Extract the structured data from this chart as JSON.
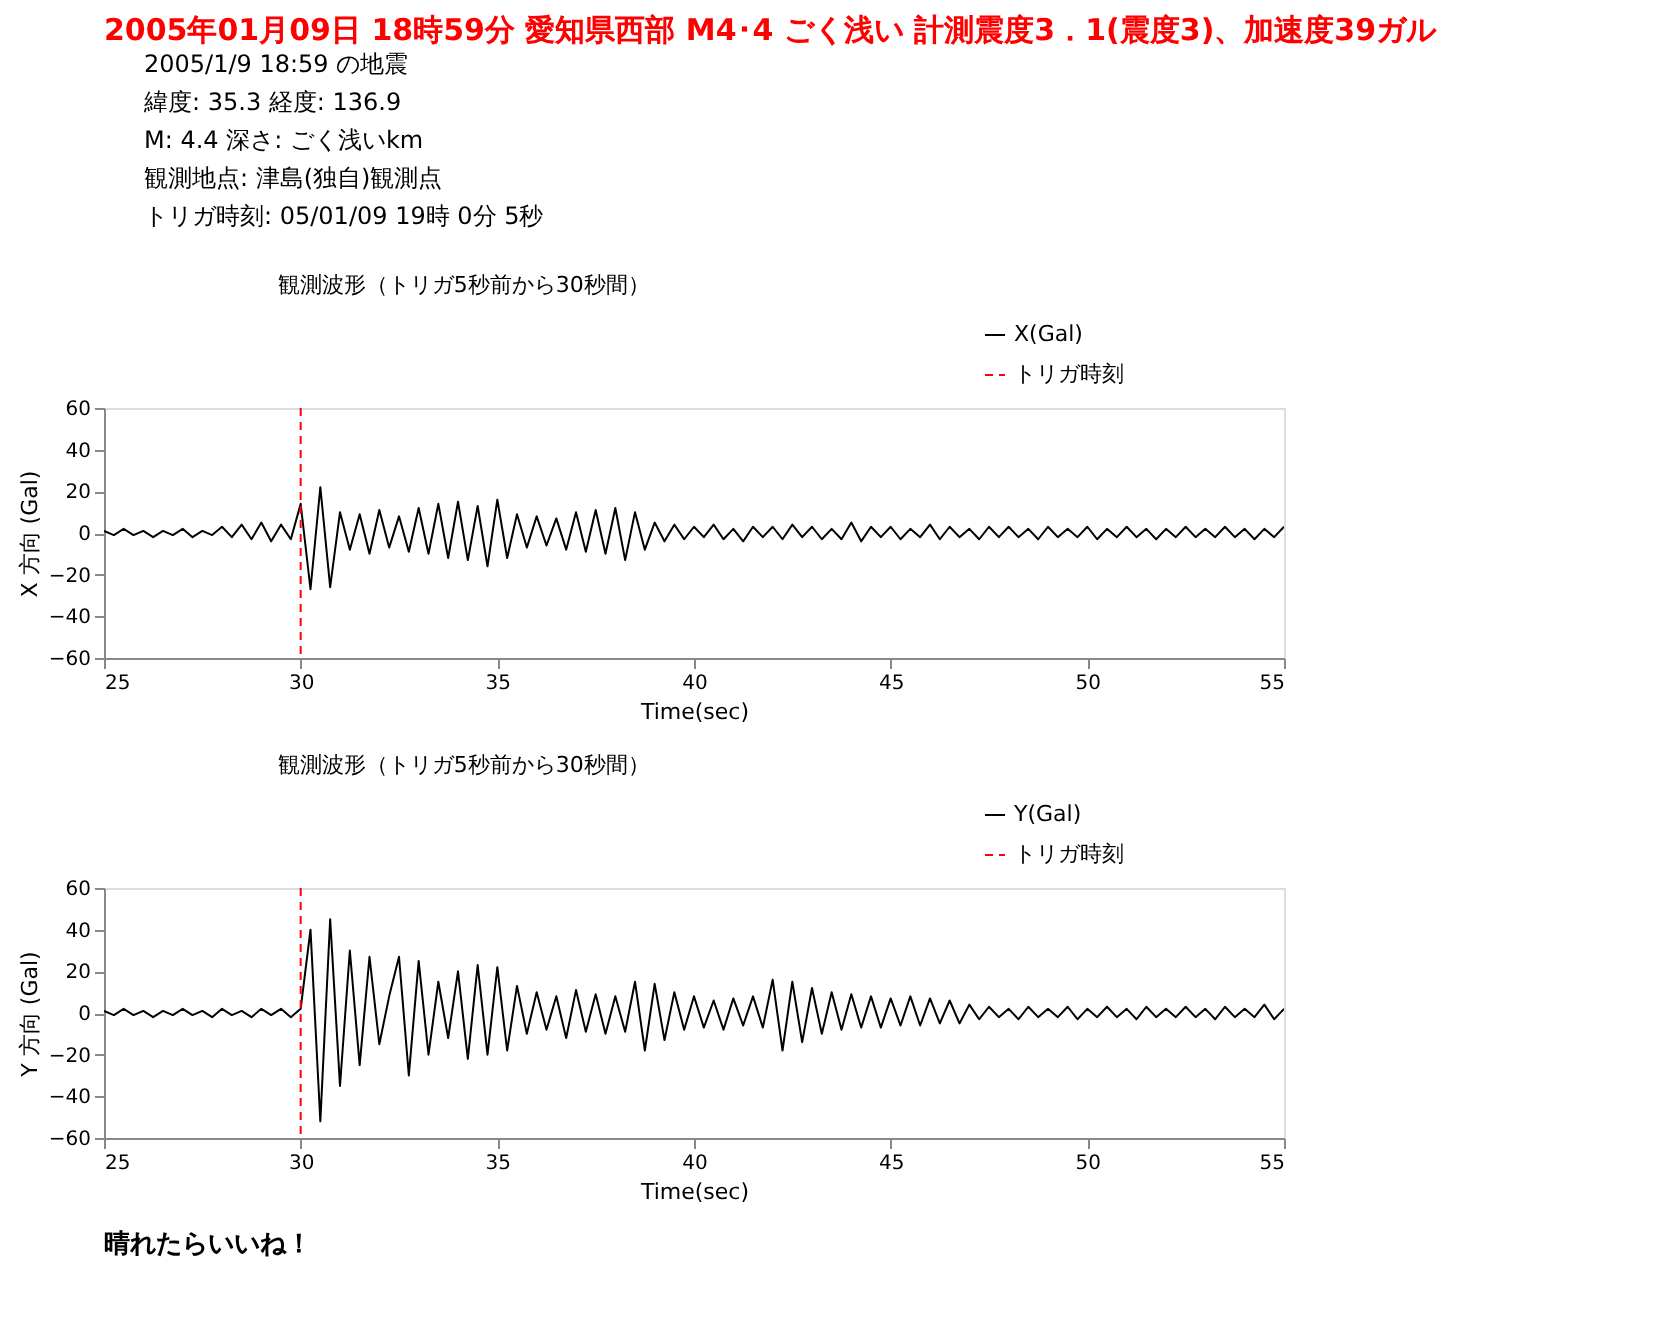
{
  "chart_data": [
    {
      "type": "line",
      "title": "観測波形（トリガ5秒前から30秒間）",
      "xlabel": "Time(sec)",
      "ylabel": "X 方向 (Gal)",
      "annotations": [
        "2005年01月09日 18時59分 愛知県西部 M4･4 ごく浅い 計測震度3．1(震度3)、加速度39ガル",
        "2005/1/9 18:59 の地震",
        "緯度: 35.3  経度: 136.9",
        "M: 4.4  深さ: ごく浅いkm",
        "観測地点: 津島(独自)観測点",
        "トリガ時刻: 05/01/09 19時 0分 5秒"
      ],
      "x": [
        25,
        25.25,
        25.5,
        25.75,
        26,
        26.25,
        26.5,
        26.75,
        27,
        27.25,
        27.5,
        27.75,
        28,
        28.25,
        28.5,
        28.75,
        29,
        29.25,
        29.5,
        29.75,
        30,
        30.25,
        30.5,
        30.75,
        31,
        31.25,
        31.5,
        31.75,
        32,
        32.25,
        32.5,
        32.75,
        33,
        33.25,
        33.5,
        33.75,
        34,
        34.25,
        34.5,
        34.75,
        35,
        35.25,
        35.5,
        35.75,
        36,
        36.25,
        36.5,
        36.75,
        37,
        37.25,
        37.5,
        37.75,
        38,
        38.25,
        38.5,
        38.75,
        39,
        39.25,
        39.5,
        39.75,
        40,
        40.25,
        40.5,
        40.75,
        41,
        41.25,
        41.5,
        41.75,
        42,
        42.25,
        42.5,
        42.75,
        43,
        43.25,
        43.5,
        43.75,
        44,
        44.25,
        44.5,
        44.75,
        45,
        45.25,
        45.5,
        45.75,
        46,
        46.25,
        46.5,
        46.75,
        47,
        47.25,
        47.5,
        47.75,
        48,
        48.25,
        48.5,
        48.75,
        49,
        49.25,
        49.5,
        49.75,
        50,
        50.25,
        50.5,
        50.75,
        51,
        51.25,
        51.5,
        51.75,
        52,
        52.25,
        52.5,
        52.75,
        53,
        53.25,
        53.5,
        53.75,
        54,
        54.25,
        54.5,
        54.75,
        55
      ],
      "series": [
        {
          "name": "X(Gal)",
          "color": "#000000",
          "line_style": "solid",
          "values": [
            1,
            -1,
            2,
            -1,
            1,
            -2,
            1,
            -1,
            2,
            -2,
            1,
            -1,
            3,
            -2,
            4,
            -3,
            5,
            -4,
            4,
            -3,
            14,
            -27,
            22,
            -26,
            10,
            -8,
            9,
            -10,
            11,
            -7,
            8,
            -9,
            12,
            -10,
            14,
            -12,
            15,
            -13,
            13,
            -16,
            16,
            -12,
            9,
            -7,
            8,
            -6,
            7,
            -8,
            10,
            -9,
            11,
            -10,
            12,
            -13,
            10,
            -8,
            5,
            -4,
            4,
            -3,
            3,
            -2,
            4,
            -3,
            2,
            -4,
            3,
            -2,
            3,
            -3,
            4,
            -2,
            3,
            -3,
            2,
            -3,
            5,
            -4,
            3,
            -2,
            3,
            -3,
            2,
            -2,
            4,
            -3,
            3,
            -2,
            2,
            -3,
            3,
            -2,
            3,
            -2,
            2,
            -3,
            3,
            -2,
            2,
            -2,
            3,
            -3,
            2,
            -2,
            3,
            -2,
            2,
            -3,
            2,
            -2,
            3,
            -2,
            2,
            -2,
            3,
            -2,
            2,
            -3,
            2,
            -2,
            3
          ]
        }
      ],
      "ref_lines": [
        {
          "axis": "x",
          "value": 30,
          "label": "トリガ時刻",
          "color": "#ff0000",
          "line_style": "dashed"
        }
      ],
      "xlim": [
        25,
        55
      ],
      "xticks": [
        25,
        30,
        35,
        40,
        45,
        50,
        55
      ],
      "ylim": [
        -60,
        60
      ],
      "yticks": [
        -60,
        -40,
        -20,
        0,
        20,
        40,
        60
      ],
      "grid": false,
      "legend": "top right",
      "marker": "none"
    },
    {
      "type": "line",
      "title": "観測波形（トリガ5秒前から30秒間）",
      "xlabel": "Time(sec)",
      "ylabel": "Y 方向 (Gal)",
      "annotations": [
        "晴れたらいいね！"
      ],
      "x": [
        25,
        25.25,
        25.5,
        25.75,
        26,
        26.25,
        26.5,
        26.75,
        27,
        27.25,
        27.5,
        27.75,
        28,
        28.25,
        28.5,
        28.75,
        29,
        29.25,
        29.5,
        29.75,
        30,
        30.25,
        30.5,
        30.75,
        31,
        31.25,
        31.5,
        31.75,
        32,
        32.25,
        32.5,
        32.75,
        33,
        33.25,
        33.5,
        33.75,
        34,
        34.25,
        34.5,
        34.75,
        35,
        35.25,
        35.5,
        35.75,
        36,
        36.25,
        36.5,
        36.75,
        37,
        37.25,
        37.5,
        37.75,
        38,
        38.25,
        38.5,
        38.75,
        39,
        39.25,
        39.5,
        39.75,
        40,
        40.25,
        40.5,
        40.75,
        41,
        41.25,
        41.5,
        41.75,
        42,
        42.25,
        42.5,
        42.75,
        43,
        43.25,
        43.5,
        43.75,
        44,
        44.25,
        44.5,
        44.75,
        45,
        45.25,
        45.5,
        45.75,
        46,
        46.25,
        46.5,
        46.75,
        47,
        47.25,
        47.5,
        47.75,
        48,
        48.25,
        48.5,
        48.75,
        49,
        49.25,
        49.5,
        49.75,
        50,
        50.25,
        50.5,
        50.75,
        51,
        51.25,
        51.5,
        51.75,
        52,
        52.25,
        52.5,
        52.75,
        53,
        53.25,
        53.5,
        53.75,
        54,
        54.25,
        54.5,
        54.75,
        55
      ],
      "series": [
        {
          "name": "Y(Gal)",
          "color": "#000000",
          "line_style": "solid",
          "values": [
            1,
            -1,
            2,
            -1,
            1,
            -2,
            1,
            -1,
            2,
            -1,
            1,
            -2,
            2,
            -1,
            1,
            -2,
            2,
            -1,
            2,
            -2,
            2,
            40,
            -52,
            45,
            -35,
            30,
            -25,
            27,
            -15,
            8,
            27,
            -30,
            25,
            -20,
            15,
            -12,
            20,
            -22,
            23,
            -20,
            22,
            -18,
            13,
            -10,
            10,
            -8,
            8,
            -12,
            11,
            -9,
            9,
            -10,
            8,
            -9,
            15,
            -18,
            14,
            -13,
            10,
            -8,
            8,
            -7,
            6,
            -8,
            7,
            -6,
            8,
            -7,
            16,
            -18,
            15,
            -14,
            12,
            -10,
            10,
            -8,
            9,
            -7,
            8,
            -7,
            7,
            -6,
            8,
            -6,
            7,
            -5,
            6,
            -5,
            4,
            -3,
            3,
            -2,
            2,
            -3,
            3,
            -2,
            2,
            -2,
            3,
            -3,
            2,
            -2,
            3,
            -2,
            2,
            -3,
            3,
            -2,
            2,
            -2,
            3,
            -2,
            2,
            -3,
            3,
            -2,
            2,
            -2,
            4,
            -3,
            2
          ]
        }
      ],
      "ref_lines": [
        {
          "axis": "x",
          "value": 30,
          "label": "トリガ時刻",
          "color": "#ff0000",
          "line_style": "dashed"
        }
      ],
      "xlim": [
        25,
        55
      ],
      "xticks": [
        25,
        30,
        35,
        40,
        45,
        50,
        55
      ],
      "ylim": [
        -60,
        60
      ],
      "yticks": [
        -60,
        -40,
        -20,
        0,
        20,
        40,
        60
      ],
      "grid": false,
      "legend": "top right",
      "marker": "none"
    }
  ]
}
